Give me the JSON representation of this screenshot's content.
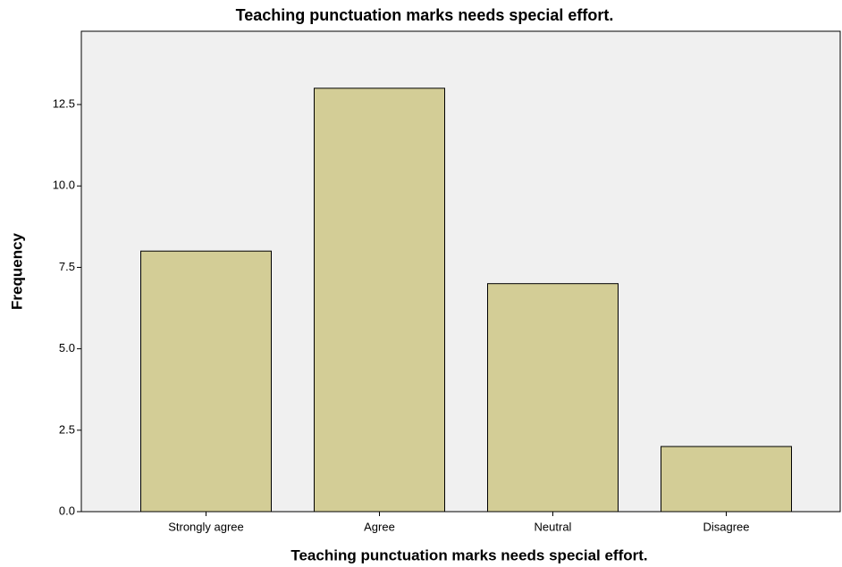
{
  "chart_data": {
    "type": "bar",
    "title": "Teaching punctuation marks needs special effort.",
    "x_label": "Teaching punctuation marks needs special effort.",
    "y_label": "Frequency",
    "categories": [
      "Strongly agree",
      "Agree",
      "Neutral",
      "Disagree"
    ],
    "values": [
      8,
      13,
      7,
      2
    ],
    "color": "#d3cd96",
    "ylim": [
      0,
      14.75
    ],
    "yticks": [
      {
        "value": 0,
        "label": "0.0"
      },
      2.5,
      {
        "value": 5,
        "label": "5.0"
      },
      7.5,
      {
        "value": 10,
        "label": "10.0"
      },
      12.5
    ],
    "grid": false
  }
}
